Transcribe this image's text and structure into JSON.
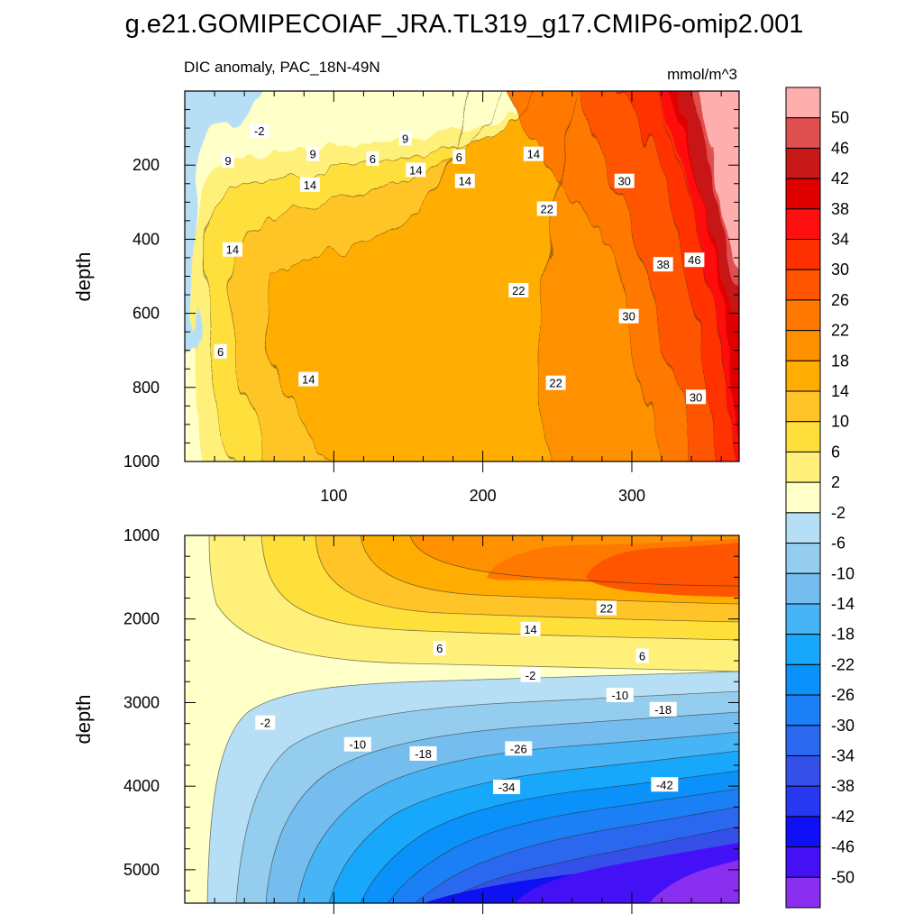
{
  "chart_data": {
    "type": "heatmap",
    "title": "g.e21.GOMIPECOIAF_JRA.TL319_g17.CMIP6-omip2.001",
    "subtitle_left": "DIC anomaly, PAC_18N-49N",
    "units": "mmol/m^3",
    "xlim": [
      0,
      372
    ],
    "x_ticks": [
      100,
      200,
      300
    ],
    "colorbar": {
      "levels": [
        -50,
        -46,
        -42,
        -38,
        -34,
        -30,
        -26,
        -22,
        -18,
        -14,
        -10,
        -6,
        -2,
        2,
        6,
        10,
        14,
        18,
        22,
        26,
        30,
        34,
        38,
        42,
        46,
        50
      ],
      "labels": [
        "50",
        "46",
        "42",
        "38",
        "34",
        "30",
        "26",
        "22",
        "18",
        "14",
        "10",
        "6",
        "2",
        "-2",
        "-6",
        "-10",
        "-14",
        "-18",
        "-22",
        "-26",
        "-30",
        "-34",
        "-38",
        "-42",
        "-46",
        "-50"
      ],
      "colors": [
        "#ffaeae",
        "#e05050",
        "#c81818",
        "#e00000",
        "#ff1010",
        "#ff3000",
        "#ff5500",
        "#ff7800",
        "#ff9000",
        "#ffad00",
        "#ffc428",
        "#ffdf3a",
        "#fff07a",
        "#ffffc8",
        "#b6dff5",
        "#95cdee",
        "#74bdee",
        "#46b4f5",
        "#17a8fc",
        "#0a92fa",
        "#1b80f5",
        "#2a68ef",
        "#3550e8",
        "#2838f0",
        "#1010f5",
        "#4410f5",
        "#8a2ef0"
      ]
    },
    "panels": [
      {
        "id": "upper",
        "ylabel": "depth",
        "ylim": [
          0,
          1000
        ],
        "y_ticks": [
          200,
          400,
          600,
          800,
          1000
        ],
        "contour_labels": [
          {
            "text": "-2",
            "x": 50,
            "y": 110
          },
          {
            "text": "9",
            "x": 148,
            "y": 130
          },
          {
            "text": "9",
            "x": 86,
            "y": 172
          },
          {
            "text": "9",
            "x": 29,
            "y": 190
          },
          {
            "text": "6",
            "x": 126,
            "y": 185
          },
          {
            "text": "6",
            "x": 184,
            "y": 180
          },
          {
            "text": "14",
            "x": 155,
            "y": 215
          },
          {
            "text": "14",
            "x": 234,
            "y": 172
          },
          {
            "text": "14",
            "x": 84,
            "y": 255
          },
          {
            "text": "14",
            "x": 188,
            "y": 245
          },
          {
            "text": "14",
            "x": 32,
            "y": 430
          },
          {
            "text": "22",
            "x": 243,
            "y": 320
          },
          {
            "text": "22",
            "x": 224,
            "y": 540
          },
          {
            "text": "30",
            "x": 295,
            "y": 245
          },
          {
            "text": "38",
            "x": 321,
            "y": 470
          },
          {
            "text": "46",
            "x": 342,
            "y": 458
          },
          {
            "text": "30",
            "x": 298,
            "y": 610
          },
          {
            "text": "6",
            "x": 24,
            "y": 705
          },
          {
            "text": "14",
            "x": 83,
            "y": 780
          },
          {
            "text": "22",
            "x": 249,
            "y": 790
          },
          {
            "text": "30",
            "x": 343,
            "y": 828
          }
        ]
      },
      {
        "id": "lower",
        "ylabel": "depth",
        "ylim": [
          1000,
          5400
        ],
        "y_ticks": [
          1000,
          2000,
          3000,
          4000,
          5000
        ],
        "contour_labels": [
          {
            "text": "22",
            "x": 283,
            "y": 1880
          },
          {
            "text": "14",
            "x": 232,
            "y": 2130
          },
          {
            "text": "6",
            "x": 171,
            "y": 2360
          },
          {
            "text": "6",
            "x": 307,
            "y": 2450
          },
          {
            "text": "-2",
            "x": 232,
            "y": 2680
          },
          {
            "text": "-10",
            "x": 292,
            "y": 2920
          },
          {
            "text": "-18",
            "x": 321,
            "y": 3090
          },
          {
            "text": "-2",
            "x": 54,
            "y": 3250
          },
          {
            "text": "-10",
            "x": 116,
            "y": 3510
          },
          {
            "text": "-18",
            "x": 160,
            "y": 3620
          },
          {
            "text": "-26",
            "x": 224,
            "y": 3560
          },
          {
            "text": "-34",
            "x": 216,
            "y": 4020
          },
          {
            "text": "-42",
            "x": 322,
            "y": 3990
          }
        ]
      }
    ]
  }
}
